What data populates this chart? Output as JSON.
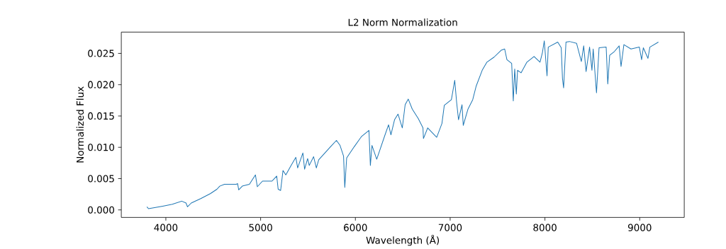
{
  "chart_data": {
    "type": "line",
    "title": "L2 Norm Normalization",
    "xlabel": "Wavelength (Å)",
    "ylabel": "Normalized Flux",
    "xlim": [
      3530,
      9470
    ],
    "ylim": [
      -0.0012,
      0.0284
    ],
    "xticks": [
      4000,
      5000,
      6000,
      7000,
      8000,
      9000
    ],
    "yticks": [
      {
        "value": 0,
        "label": "0.000"
      },
      {
        "value": 0.005,
        "label": "0.005"
      },
      {
        "value": 0.01,
        "label": "0.010"
      },
      {
        "value": 0.015,
        "label": "0.015"
      },
      {
        "value": 0.02,
        "label": "0.020"
      },
      {
        "value": 0.025,
        "label": "0.025"
      }
    ],
    "marker": "none",
    "line_style": "solid",
    "series": [
      {
        "color": "#1f77b4",
        "x": [
          3800,
          3817,
          3967,
          4068,
          4168,
          4213,
          4228,
          4268,
          4368,
          4469,
          4539,
          4569,
          4619,
          4744,
          4757,
          4769,
          4807,
          4882,
          4945,
          4965,
          5020,
          5120,
          5170,
          5185,
          5211,
          5236,
          5266,
          5321,
          5371,
          5391,
          5446,
          5464,
          5496,
          5513,
          5559,
          5588,
          5613,
          5738,
          5800,
          5838,
          5875,
          5888,
          5908,
          5988,
          6063,
          6143,
          6158,
          6175,
          6225,
          6313,
          6350,
          6375,
          6413,
          6450,
          6495,
          6525,
          6558,
          6600,
          6663,
          6713,
          6718,
          6763,
          6813,
          6858,
          6913,
          6938,
          7013,
          7048,
          7068,
          7088,
          7125,
          7138,
          7188,
          7238,
          7275,
          7338,
          7388,
          7463,
          7538,
          7575,
          7599,
          7649,
          7666,
          7681,
          7698,
          7711,
          7748,
          7810,
          7885,
          7948,
          7973,
          7993,
          8022,
          8035,
          8135,
          8172,
          8185,
          8197,
          8222,
          8259,
          8334,
          8384,
          8409,
          8434,
          8471,
          8496,
          8509,
          8544,
          8571,
          8646,
          8663,
          8683,
          8733,
          8783,
          8803,
          8833,
          8908,
          8996,
          9020,
          9038,
          9087,
          9107,
          9197
        ],
        "values": [
          0.0005,
          0.0002,
          0.0006,
          0.0009,
          0.0014,
          0.0011,
          0.0005,
          0.0011,
          0.0018,
          0.0026,
          0.0033,
          0.0038,
          0.0041,
          0.0041,
          0.0042,
          0.0032,
          0.0038,
          0.0041,
          0.0056,
          0.0037,
          0.0046,
          0.0046,
          0.0054,
          0.0033,
          0.0031,
          0.0063,
          0.0056,
          0.0071,
          0.0084,
          0.0067,
          0.0091,
          0.0065,
          0.0082,
          0.0071,
          0.0085,
          0.0067,
          0.008,
          0.0101,
          0.0111,
          0.0103,
          0.0086,
          0.0036,
          0.0083,
          0.0101,
          0.0117,
          0.0127,
          0.0071,
          0.0103,
          0.0081,
          0.012,
          0.0136,
          0.012,
          0.0144,
          0.0153,
          0.0131,
          0.0168,
          0.0177,
          0.0161,
          0.0146,
          0.0131,
          0.0114,
          0.0131,
          0.0123,
          0.0116,
          0.0138,
          0.0167,
          0.0176,
          0.0207,
          0.0172,
          0.0144,
          0.0168,
          0.0135,
          0.0161,
          0.0176,
          0.0198,
          0.0223,
          0.0236,
          0.0244,
          0.0255,
          0.0257,
          0.024,
          0.0234,
          0.0174,
          0.0225,
          0.0185,
          0.0223,
          0.0219,
          0.0236,
          0.0245,
          0.0236,
          0.0251,
          0.027,
          0.0214,
          0.026,
          0.0268,
          0.0259,
          0.021,
          0.0195,
          0.0268,
          0.0269,
          0.0266,
          0.0237,
          0.0262,
          0.0221,
          0.026,
          0.0223,
          0.0257,
          0.0187,
          0.0259,
          0.026,
          0.0201,
          0.0247,
          0.0253,
          0.0262,
          0.0229,
          0.0264,
          0.0257,
          0.026,
          0.024,
          0.0259,
          0.0242,
          0.026,
          0.0268
        ]
      }
    ]
  }
}
